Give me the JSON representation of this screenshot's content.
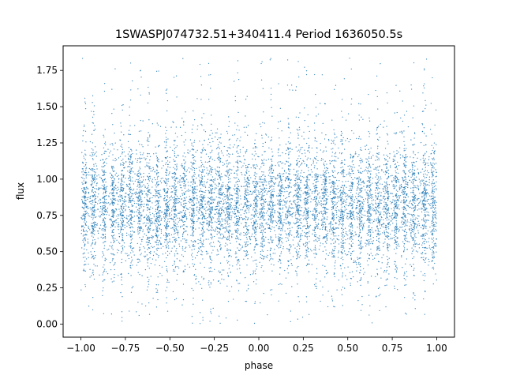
{
  "chart_data": {
    "type": "scatter",
    "title": "1SWASPJ074732.51+340411.4 Period 1636050.5s",
    "xlabel": "phase",
    "ylabel": "flux",
    "xlim": [
      -1.1,
      1.1
    ],
    "ylim": [
      -0.09,
      1.92
    ],
    "x_ticks": [
      -1.0,
      -0.75,
      -0.5,
      -0.25,
      0.0,
      0.25,
      0.5,
      0.75,
      1.0
    ],
    "x_tick_labels": [
      "−1.00",
      "−0.75",
      "−0.50",
      "−0.25",
      "0.00",
      "0.25",
      "0.50",
      "0.75",
      "1.00"
    ],
    "y_ticks": [
      0.0,
      0.25,
      0.5,
      0.75,
      1.0,
      1.25,
      1.5,
      1.75
    ],
    "y_tick_labels": [
      "0.00",
      "0.25",
      "0.50",
      "0.75",
      "1.00",
      "1.25",
      "1.50",
      "1.75"
    ],
    "grid": false,
    "legend": "none",
    "point_color": "#1f77b4",
    "x_range": [
      -1.0,
      1.0
    ],
    "flux_median": 0.82,
    "flux_core": [
      0.55,
      1.1
    ],
    "flux_extent": [
      0.0,
      1.85
    ],
    "stripe_centers": [
      -0.98,
      -0.93,
      -0.87,
      -0.82,
      -0.77,
      -0.72,
      -0.67,
      -0.62,
      -0.57,
      -0.52,
      -0.47,
      -0.42,
      -0.37,
      -0.32,
      -0.27,
      -0.22,
      -0.17,
      -0.12,
      -0.07,
      -0.02,
      0.02,
      0.07,
      0.12,
      0.17,
      0.22,
      0.27,
      0.32,
      0.37,
      0.42,
      0.47,
      0.52,
      0.57,
      0.62,
      0.67,
      0.72,
      0.77,
      0.82,
      0.87,
      0.93,
      0.98
    ],
    "n_points": 9000
  }
}
